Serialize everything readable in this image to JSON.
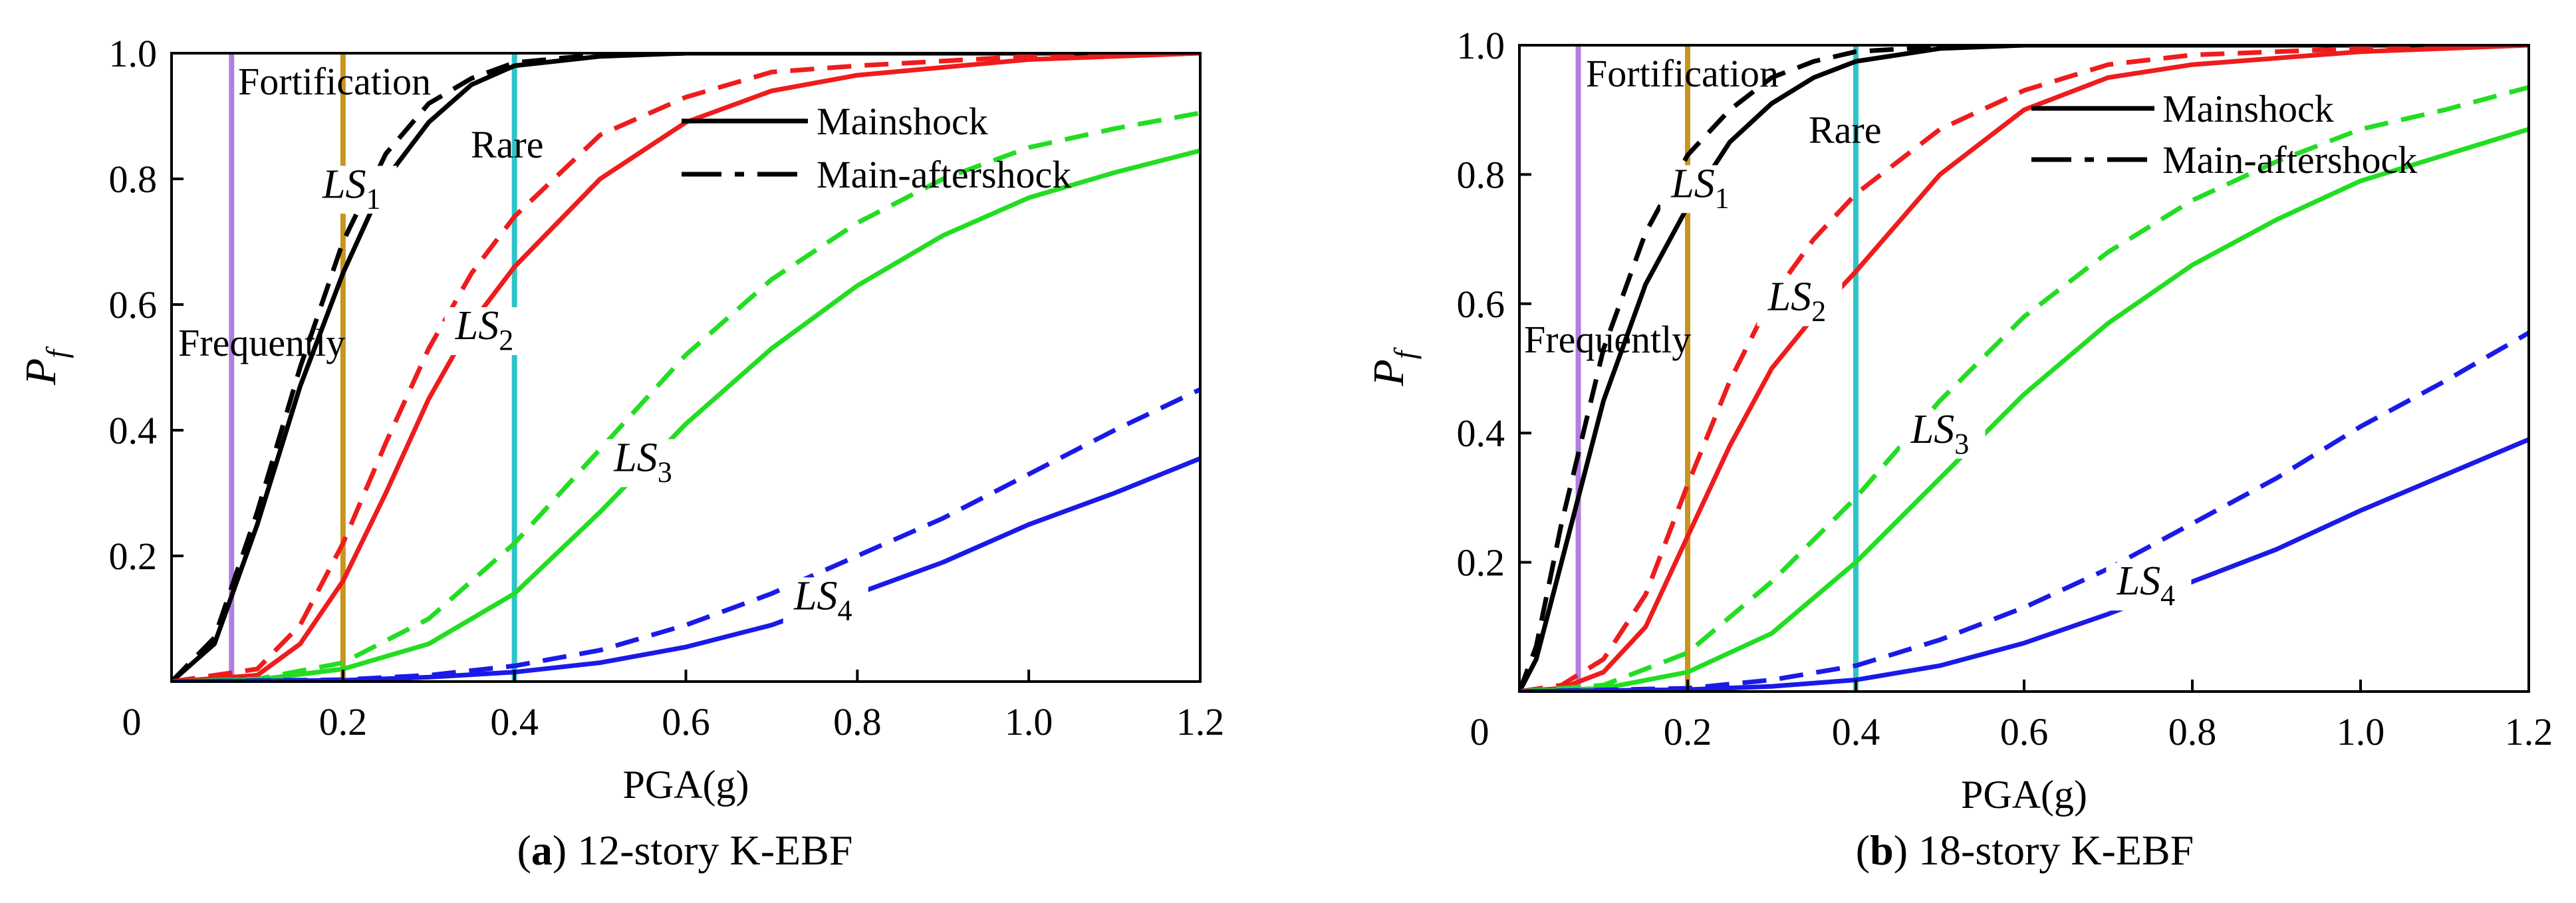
{
  "chart_data": [
    {
      "type": "line",
      "caption": {
        "letter": "a",
        "text": "12-story K-EBF"
      },
      "xlabel": "PGA(g)",
      "ylabel": {
        "main": "P",
        "sub": "f"
      },
      "xlim": [
        0,
        1.2
      ],
      "ylim": [
        0,
        1.0
      ],
      "xticks": [
        "0",
        "0.2",
        "0.4",
        "0.6",
        "0.8",
        "1.0",
        "1.2"
      ],
      "yticks": [
        "0.2",
        "0.4",
        "0.6",
        "0.8",
        "1.0"
      ],
      "legend": {
        "position": "top-right",
        "solid": "Mainshock",
        "dashed": "Main-aftershock"
      },
      "reference_lines": [
        {
          "x": 0.07,
          "label": "Frequently",
          "color": "#b07fe0"
        },
        {
          "x": 0.2,
          "label": "Fortification",
          "color": "#c8961e"
        },
        {
          "x": 0.4,
          "label": "Rare",
          "color": "#2ec4c8"
        }
      ],
      "series": [
        {
          "label": "LS1",
          "color": "#000000",
          "style": "solid",
          "x": [
            0,
            0.05,
            0.1,
            0.15,
            0.2,
            0.25,
            0.3,
            0.35,
            0.4,
            0.5,
            0.6,
            0.8,
            1.0,
            1.2
          ],
          "y": [
            0,
            0.06,
            0.25,
            0.47,
            0.65,
            0.8,
            0.89,
            0.95,
            0.98,
            0.995,
            1.0,
            1.0,
            1.0,
            1.0
          ]
        },
        {
          "label": "LS1",
          "color": "#000000",
          "style": "dashed",
          "x": [
            0,
            0.05,
            0.1,
            0.15,
            0.2,
            0.25,
            0.3,
            0.35,
            0.4,
            0.5,
            0.6,
            0.8,
            1.0,
            1.2
          ],
          "y": [
            0,
            0.07,
            0.27,
            0.5,
            0.7,
            0.84,
            0.92,
            0.96,
            0.985,
            0.998,
            1.0,
            1.0,
            1.0,
            1.0
          ]
        },
        {
          "label": "LS2",
          "color": "#ee1c1c",
          "style": "solid",
          "x": [
            0,
            0.1,
            0.15,
            0.2,
            0.25,
            0.3,
            0.35,
            0.4,
            0.5,
            0.6,
            0.7,
            0.8,
            1.0,
            1.2
          ],
          "y": [
            0,
            0.01,
            0.06,
            0.16,
            0.3,
            0.45,
            0.57,
            0.66,
            0.8,
            0.89,
            0.94,
            0.965,
            0.99,
            1.0
          ]
        },
        {
          "label": "LS2",
          "color": "#ee1c1c",
          "style": "dashed",
          "x": [
            0,
            0.1,
            0.15,
            0.2,
            0.25,
            0.3,
            0.35,
            0.4,
            0.5,
            0.6,
            0.7,
            0.8,
            1.0,
            1.2
          ],
          "y": [
            0,
            0.02,
            0.09,
            0.22,
            0.38,
            0.53,
            0.65,
            0.74,
            0.87,
            0.93,
            0.97,
            0.98,
            0.995,
            1.0
          ]
        },
        {
          "label": "LS3",
          "color": "#22dd22",
          "style": "solid",
          "x": [
            0,
            0.1,
            0.2,
            0.3,
            0.4,
            0.5,
            0.6,
            0.7,
            0.8,
            0.9,
            1.0,
            1.1,
            1.2
          ],
          "y": [
            0,
            0.003,
            0.02,
            0.06,
            0.14,
            0.27,
            0.41,
            0.53,
            0.63,
            0.71,
            0.77,
            0.81,
            0.845
          ]
        },
        {
          "label": "LS3",
          "color": "#22dd22",
          "style": "dashed",
          "x": [
            0,
            0.1,
            0.2,
            0.3,
            0.4,
            0.5,
            0.6,
            0.7,
            0.8,
            0.9,
            1.0,
            1.1,
            1.2
          ],
          "y": [
            0,
            0.004,
            0.03,
            0.1,
            0.22,
            0.37,
            0.52,
            0.64,
            0.73,
            0.8,
            0.85,
            0.88,
            0.905
          ]
        },
        {
          "label": "LS4",
          "color": "#1a1ae8",
          "style": "solid",
          "x": [
            0,
            0.2,
            0.3,
            0.4,
            0.5,
            0.6,
            0.7,
            0.8,
            0.9,
            1.0,
            1.1,
            1.2
          ],
          "y": [
            0,
            0.002,
            0.007,
            0.015,
            0.03,
            0.055,
            0.09,
            0.14,
            0.19,
            0.25,
            0.3,
            0.355
          ]
        },
        {
          "label": "LS4",
          "color": "#1a1ae8",
          "style": "dashed",
          "x": [
            0,
            0.2,
            0.3,
            0.4,
            0.5,
            0.6,
            0.7,
            0.8,
            0.9,
            1.0,
            1.1,
            1.2
          ],
          "y": [
            0,
            0.003,
            0.01,
            0.025,
            0.05,
            0.09,
            0.14,
            0.2,
            0.26,
            0.33,
            0.4,
            0.465
          ]
        }
      ],
      "annotations": [
        {
          "text": "LS",
          "sub": "1",
          "x": 0.21,
          "y": 0.77
        },
        {
          "text": "LS",
          "sub": "2",
          "x": 0.365,
          "y": 0.545
        },
        {
          "text": "LS",
          "sub": "3",
          "x": 0.55,
          "y": 0.335
        },
        {
          "text": "LS",
          "sub": "4",
          "x": 0.76,
          "y": 0.115
        }
      ]
    },
    {
      "type": "line",
      "caption": {
        "letter": "b",
        "text": "18-story K-EBF"
      },
      "xlabel": "PGA(g)",
      "ylabel": {
        "main": "P",
        "sub": "f"
      },
      "xlim": [
        0,
        1.2
      ],
      "ylim": [
        0,
        1.0
      ],
      "xticks": [
        "0",
        "0.2",
        "0.4",
        "0.6",
        "0.8",
        "1.0",
        "1.2"
      ],
      "yticks": [
        "0.2",
        "0.4",
        "0.6",
        "0.8",
        "1.0"
      ],
      "legend": {
        "position": "top-right",
        "solid": "Mainshock",
        "dashed": "Main-aftershock"
      },
      "reference_lines": [
        {
          "x": 0.07,
          "label": "Frequently",
          "color": "#b07fe0"
        },
        {
          "x": 0.2,
          "label": "Fortification",
          "color": "#c8961e"
        },
        {
          "x": 0.4,
          "label": "Rare",
          "color": "#2ec4c8"
        }
      ],
      "series": [
        {
          "label": "LS1",
          "color": "#000000",
          "style": "solid",
          "x": [
            0,
            0.02,
            0.05,
            0.1,
            0.15,
            0.2,
            0.25,
            0.3,
            0.35,
            0.4,
            0.5,
            0.6,
            0.8,
            1.2
          ],
          "y": [
            0,
            0.05,
            0.2,
            0.45,
            0.63,
            0.75,
            0.85,
            0.91,
            0.95,
            0.975,
            0.995,
            1.0,
            1.0,
            1.0
          ]
        },
        {
          "label": "LS1",
          "color": "#000000",
          "style": "dashed",
          "x": [
            0,
            0.02,
            0.05,
            0.1,
            0.15,
            0.2,
            0.25,
            0.3,
            0.35,
            0.4,
            0.5,
            0.6,
            0.8,
            1.2
          ],
          "y": [
            0,
            0.07,
            0.26,
            0.53,
            0.71,
            0.83,
            0.9,
            0.95,
            0.975,
            0.99,
            0.998,
            1.0,
            1.0,
            1.0
          ]
        },
        {
          "label": "LS2",
          "color": "#ee1c1c",
          "style": "solid",
          "x": [
            0,
            0.05,
            0.1,
            0.15,
            0.2,
            0.25,
            0.3,
            0.35,
            0.4,
            0.5,
            0.6,
            0.7,
            0.8,
            1.0,
            1.2
          ],
          "y": [
            0,
            0.005,
            0.03,
            0.1,
            0.24,
            0.38,
            0.5,
            0.58,
            0.65,
            0.8,
            0.9,
            0.95,
            0.97,
            0.99,
            1.0
          ]
        },
        {
          "label": "LS2",
          "color": "#ee1c1c",
          "style": "dashed",
          "x": [
            0,
            0.05,
            0.1,
            0.15,
            0.2,
            0.25,
            0.3,
            0.35,
            0.4,
            0.5,
            0.6,
            0.7,
            0.8,
            1.0,
            1.2
          ],
          "y": [
            0,
            0.01,
            0.05,
            0.15,
            0.32,
            0.48,
            0.61,
            0.7,
            0.77,
            0.87,
            0.93,
            0.97,
            0.985,
            0.995,
            1.0
          ]
        },
        {
          "label": "LS3",
          "color": "#22dd22",
          "style": "solid",
          "x": [
            0,
            0.1,
            0.2,
            0.3,
            0.4,
            0.5,
            0.6,
            0.7,
            0.8,
            0.9,
            1.0,
            1.1,
            1.2
          ],
          "y": [
            0,
            0.005,
            0.03,
            0.09,
            0.2,
            0.33,
            0.46,
            0.57,
            0.66,
            0.73,
            0.79,
            0.83,
            0.87
          ]
        },
        {
          "label": "LS3",
          "color": "#22dd22",
          "style": "dashed",
          "x": [
            0,
            0.1,
            0.2,
            0.3,
            0.4,
            0.5,
            0.6,
            0.7,
            0.8,
            0.9,
            1.0,
            1.1,
            1.2
          ],
          "y": [
            0,
            0.01,
            0.06,
            0.17,
            0.3,
            0.45,
            0.58,
            0.68,
            0.76,
            0.82,
            0.87,
            0.9,
            0.935
          ]
        },
        {
          "label": "LS4",
          "color": "#1a1ae8",
          "style": "solid",
          "x": [
            0,
            0.2,
            0.3,
            0.4,
            0.5,
            0.6,
            0.7,
            0.8,
            0.9,
            1.0,
            1.1,
            1.2
          ],
          "y": [
            0,
            0.003,
            0.008,
            0.018,
            0.04,
            0.075,
            0.12,
            0.17,
            0.22,
            0.28,
            0.335,
            0.39
          ]
        },
        {
          "label": "LS4",
          "color": "#1a1ae8",
          "style": "dashed",
          "x": [
            0,
            0.2,
            0.3,
            0.4,
            0.5,
            0.6,
            0.7,
            0.8,
            0.9,
            1.0,
            1.1,
            1.2
          ],
          "y": [
            0,
            0.005,
            0.018,
            0.04,
            0.08,
            0.13,
            0.19,
            0.26,
            0.33,
            0.41,
            0.48,
            0.555
          ]
        }
      ],
      "annotations": [
        {
          "text": "LS",
          "sub": "1",
          "x": 0.215,
          "y": 0.765
        },
        {
          "text": "LS",
          "sub": "2",
          "x": 0.33,
          "y": 0.59
        },
        {
          "text": "LS",
          "sub": "3",
          "x": 0.5,
          "y": 0.385
        },
        {
          "text": "LS",
          "sub": "4",
          "x": 0.745,
          "y": 0.15
        }
      ]
    }
  ]
}
